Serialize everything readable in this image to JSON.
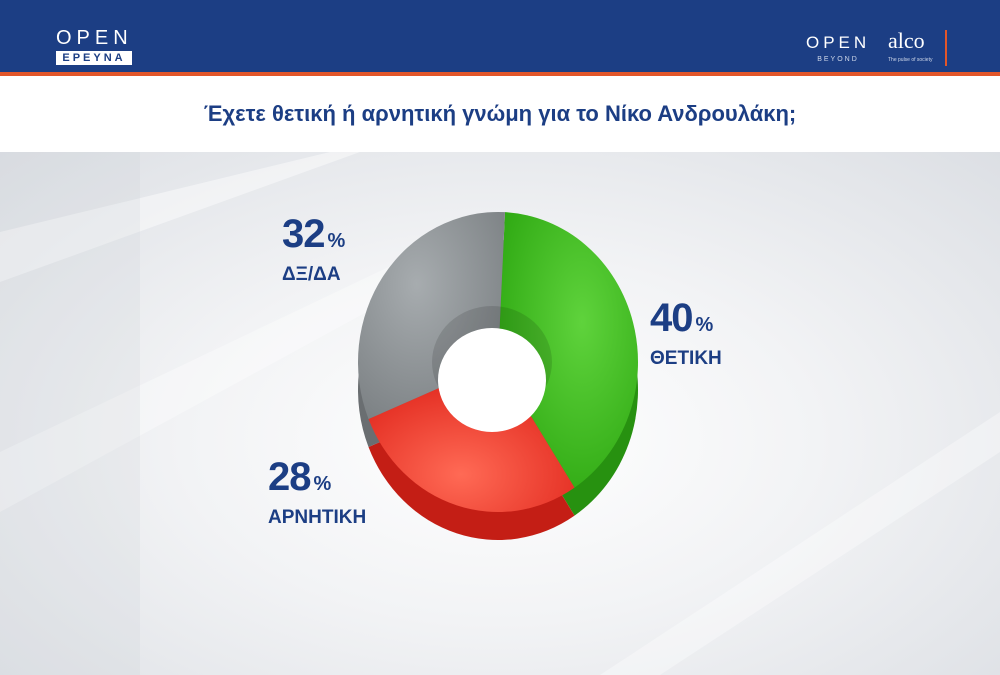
{
  "header": {
    "logo_left": {
      "open": "OPEN",
      "sub": "ΕΡΕΥΝΑ"
    },
    "logo_right": {
      "open": "OPEN",
      "beyond": "BEYOND",
      "alco": "alco",
      "alco_tagline": "The pulse of society"
    }
  },
  "question": "Έχετε θετική ή αρνητική γνώμη για το Νίκο Ανδρουλάκη;",
  "chart_data": {
    "type": "pie",
    "categories": [
      "ΘΕΤΙΚΗ",
      "ΑΡΝΗΤΙΚΗ",
      "ΔΞ/ΔΑ"
    ],
    "values": [
      40,
      28,
      32
    ],
    "unit": "%",
    "colors": [
      "#3dba1f",
      "#f03a2e",
      "#8e9396"
    ],
    "donut": true
  },
  "labels": [
    {
      "value": "40",
      "sign": "%",
      "name": "ΘΕΤΙΚΗ"
    },
    {
      "value": "28",
      "sign": "%",
      "name": "ΑΡΝΗΤΙΚΗ"
    },
    {
      "value": "32",
      "sign": "%",
      "name": "ΔΞ/ΔΑ"
    }
  ]
}
